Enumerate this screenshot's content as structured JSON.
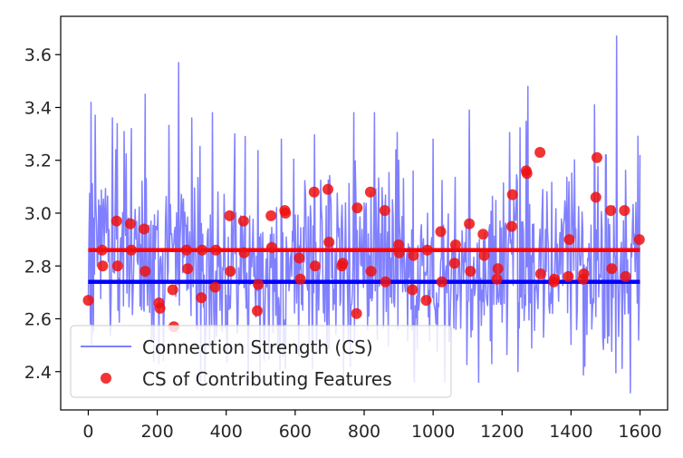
{
  "chart_data": {
    "type": "line",
    "title": "",
    "xlabel": "",
    "ylabel": "",
    "xlim": [
      -80,
      1680
    ],
    "ylim": [
      2.255,
      3.745
    ],
    "xticks": [
      0,
      200,
      400,
      600,
      800,
      1000,
      1200,
      1400,
      1600
    ],
    "xtick_labels": [
      "0",
      "200",
      "400",
      "600",
      "800",
      "1000",
      "1200",
      "1400",
      "1600"
    ],
    "yticks": [
      2.4,
      2.6,
      2.8,
      3.0,
      3.2,
      3.4,
      3.6
    ],
    "ytick_labels": [
      "2.4",
      "2.6",
      "2.8",
      "3.0",
      "3.2",
      "3.4",
      "3.6"
    ],
    "legend": {
      "position": "lower-left",
      "entries": [
        "Connection Strength (CS)",
        "CS of Contributing Features"
      ]
    },
    "series": [
      {
        "name": "Connection Strength (CS)",
        "kind": "line",
        "color": "#8080ff",
        "description_x_range": [
          0,
          1600
        ],
        "anchor_points": [
          {
            "x": 0,
            "y": 2.67
          },
          {
            "x": 8,
            "y": 3.42
          },
          {
            "x": 15,
            "y": 2.55
          },
          {
            "x": 80,
            "y": 3.24
          },
          {
            "x": 125,
            "y": 3.32
          },
          {
            "x": 165,
            "y": 3.45
          },
          {
            "x": 205,
            "y": 2.43
          },
          {
            "x": 262,
            "y": 3.57
          },
          {
            "x": 300,
            "y": 3.36
          },
          {
            "x": 360,
            "y": 3.38
          },
          {
            "x": 425,
            "y": 3.3
          },
          {
            "x": 455,
            "y": 3.29
          },
          {
            "x": 560,
            "y": 3.28
          },
          {
            "x": 610,
            "y": 2.46
          },
          {
            "x": 650,
            "y": 2.41
          },
          {
            "x": 760,
            "y": 2.42
          },
          {
            "x": 830,
            "y": 3.38
          },
          {
            "x": 900,
            "y": 3.2
          },
          {
            "x": 1000,
            "y": 3.28
          },
          {
            "x": 1105,
            "y": 3.39
          },
          {
            "x": 1170,
            "y": 2.43
          },
          {
            "x": 1275,
            "y": 3.48
          },
          {
            "x": 1320,
            "y": 2.53
          },
          {
            "x": 1440,
            "y": 2.42
          },
          {
            "x": 1468,
            "y": 3.41
          },
          {
            "x": 1532,
            "y": 3.67
          },
          {
            "x": 1572,
            "y": 2.32
          },
          {
            "x": 1600,
            "y": 3.22
          }
        ]
      },
      {
        "name": "CS of Contributing Features",
        "kind": "scatter",
        "color": "#ee1111",
        "points": [
          [
            0,
            2.67
          ],
          [
            40,
            2.86
          ],
          [
            42,
            2.8
          ],
          [
            82,
            2.97
          ],
          [
            85,
            2.8
          ],
          [
            122,
            2.96
          ],
          [
            125,
            2.86
          ],
          [
            162,
            2.94
          ],
          [
            165,
            2.78
          ],
          [
            205,
            2.66
          ],
          [
            208,
            2.64
          ],
          [
            245,
            2.71
          ],
          [
            248,
            2.57
          ],
          [
            285,
            2.86
          ],
          [
            288,
            2.79
          ],
          [
            328,
            2.68
          ],
          [
            330,
            2.86
          ],
          [
            368,
            2.72
          ],
          [
            370,
            2.86
          ],
          [
            410,
            2.99
          ],
          [
            412,
            2.78
          ],
          [
            450,
            2.97
          ],
          [
            452,
            2.85
          ],
          [
            490,
            2.63
          ],
          [
            493,
            2.73
          ],
          [
            530,
            2.99
          ],
          [
            532,
            2.87
          ],
          [
            570,
            3.01
          ],
          [
            572,
            3.0
          ],
          [
            612,
            2.83
          ],
          [
            615,
            2.75
          ],
          [
            655,
            3.08
          ],
          [
            658,
            2.8
          ],
          [
            695,
            3.09
          ],
          [
            698,
            2.89
          ],
          [
            735,
            2.8
          ],
          [
            738,
            2.81
          ],
          [
            778,
            2.62
          ],
          [
            780,
            3.02
          ],
          [
            818,
            3.08
          ],
          [
            820,
            2.78
          ],
          [
            860,
            3.01
          ],
          [
            862,
            2.74
          ],
          [
            900,
            2.88
          ],
          [
            902,
            2.85
          ],
          [
            940,
            2.71
          ],
          [
            943,
            2.84
          ],
          [
            980,
            2.67
          ],
          [
            983,
            2.86
          ],
          [
            1022,
            2.93
          ],
          [
            1025,
            2.74
          ],
          [
            1062,
            2.81
          ],
          [
            1065,
            2.88
          ],
          [
            1105,
            2.96
          ],
          [
            1108,
            2.78
          ],
          [
            1145,
            2.92
          ],
          [
            1148,
            2.84
          ],
          [
            1185,
            2.75
          ],
          [
            1188,
            2.79
          ],
          [
            1228,
            2.95
          ],
          [
            1230,
            3.07
          ],
          [
            1270,
            3.16
          ],
          [
            1272,
            3.15
          ],
          [
            1310,
            3.23
          ],
          [
            1312,
            2.77
          ],
          [
            1350,
            2.74
          ],
          [
            1352,
            2.75
          ],
          [
            1392,
            2.76
          ],
          [
            1395,
            2.9
          ],
          [
            1435,
            2.75
          ],
          [
            1437,
            2.77
          ],
          [
            1472,
            3.06
          ],
          [
            1475,
            3.21
          ],
          [
            1515,
            3.01
          ],
          [
            1518,
            2.79
          ],
          [
            1555,
            3.01
          ],
          [
            1558,
            2.76
          ],
          [
            1598,
            2.9
          ]
        ]
      },
      {
        "name": "",
        "kind": "hline",
        "color": "#ff0000",
        "y": 2.86,
        "x_range": [
          0,
          1600
        ]
      },
      {
        "name": "",
        "kind": "hline",
        "color": "#0000ff",
        "y": 2.74,
        "x_range": [
          0,
          1600
        ]
      }
    ]
  }
}
